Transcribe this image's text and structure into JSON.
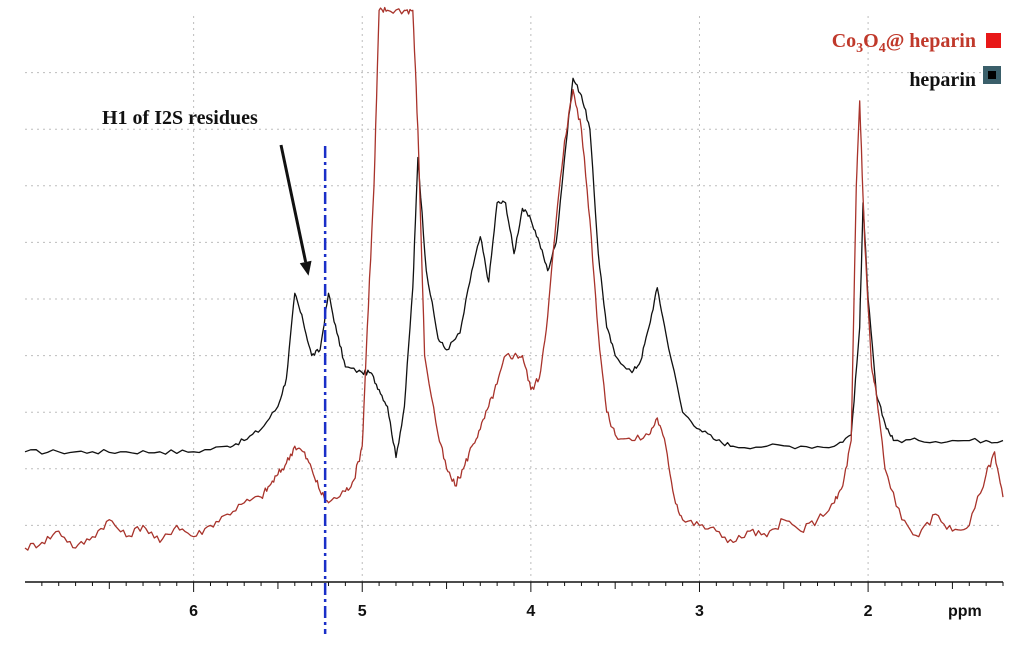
{
  "chart_data": {
    "type": "line",
    "title": "",
    "xlabel": "ppm",
    "ylabel": "",
    "x_reversed": true,
    "xlim": [
      7.0,
      1.2
    ],
    "ylim": [
      0,
      100
    ],
    "grid": true,
    "tick_labels": [
      "6",
      "5",
      "4",
      "3",
      "2"
    ],
    "ticks": [
      6,
      5,
      4,
      3,
      2
    ],
    "legend_placement": "top-right",
    "legend": [
      {
        "name": "Co3O4@ heparin",
        "color": "#c0392b",
        "marker_color": "#e81818"
      },
      {
        "name": "heparin",
        "color": "#111111",
        "marker_color": "#3a5f6a"
      }
    ],
    "annotation": {
      "text": "H1 of I2S residues",
      "points_to_ppm": 5.3
    },
    "reference_line_ppm": 5.22,
    "series": [
      {
        "name": "heparin",
        "color": "#111111",
        "points": [
          [
            7.0,
            23
          ],
          [
            6.8,
            23
          ],
          [
            6.6,
            23
          ],
          [
            6.4,
            23
          ],
          [
            6.2,
            23
          ],
          [
            6.0,
            23
          ],
          [
            5.8,
            24
          ],
          [
            5.7,
            25
          ],
          [
            5.6,
            27
          ],
          [
            5.5,
            31
          ],
          [
            5.45,
            36
          ],
          [
            5.4,
            51
          ],
          [
            5.35,
            46
          ],
          [
            5.3,
            40
          ],
          [
            5.25,
            41
          ],
          [
            5.2,
            51
          ],
          [
            5.15,
            44
          ],
          [
            5.1,
            38
          ],
          [
            5.0,
            37
          ],
          [
            4.95,
            37
          ],
          [
            4.9,
            34
          ],
          [
            4.85,
            31
          ],
          [
            4.8,
            22
          ],
          [
            4.75,
            31
          ],
          [
            4.7,
            52
          ],
          [
            4.67,
            75
          ],
          [
            4.62,
            55
          ],
          [
            4.55,
            43
          ],
          [
            4.5,
            41
          ],
          [
            4.42,
            44
          ],
          [
            4.35,
            55
          ],
          [
            4.3,
            61
          ],
          [
            4.25,
            53
          ],
          [
            4.2,
            67
          ],
          [
            4.15,
            67
          ],
          [
            4.1,
            58
          ],
          [
            4.05,
            66
          ],
          [
            4.0,
            64
          ],
          [
            3.95,
            60
          ],
          [
            3.9,
            55
          ],
          [
            3.85,
            60
          ],
          [
            3.8,
            75
          ],
          [
            3.75,
            89
          ],
          [
            3.7,
            86
          ],
          [
            3.65,
            80
          ],
          [
            3.6,
            58
          ],
          [
            3.55,
            45
          ],
          [
            3.5,
            40
          ],
          [
            3.4,
            37
          ],
          [
            3.35,
            39
          ],
          [
            3.3,
            45
          ],
          [
            3.25,
            52
          ],
          [
            3.2,
            44
          ],
          [
            3.1,
            30
          ],
          [
            3.0,
            27
          ],
          [
            2.9,
            25
          ],
          [
            2.8,
            24
          ],
          [
            2.6,
            24
          ],
          [
            2.4,
            24
          ],
          [
            2.2,
            24
          ],
          [
            2.1,
            26
          ],
          [
            2.05,
            45
          ],
          [
            2.03,
            67
          ],
          [
            2.0,
            50
          ],
          [
            1.95,
            33
          ],
          [
            1.9,
            28
          ],
          [
            1.85,
            25
          ],
          [
            1.7,
            25
          ],
          [
            1.5,
            25
          ],
          [
            1.3,
            25
          ],
          [
            1.2,
            25
          ]
        ]
      },
      {
        "name": "Co3O4@ heparin",
        "color": "#a8332b",
        "points": [
          [
            7.0,
            6
          ],
          [
            6.9,
            7
          ],
          [
            6.8,
            9
          ],
          [
            6.7,
            6
          ],
          [
            6.6,
            8
          ],
          [
            6.5,
            11
          ],
          [
            6.4,
            8
          ],
          [
            6.3,
            10
          ],
          [
            6.2,
            7
          ],
          [
            6.1,
            10
          ],
          [
            6.0,
            8
          ],
          [
            5.9,
            10
          ],
          [
            5.8,
            12
          ],
          [
            5.7,
            14
          ],
          [
            5.6,
            15
          ],
          [
            5.55,
            17
          ],
          [
            5.5,
            19
          ],
          [
            5.45,
            21
          ],
          [
            5.4,
            24
          ],
          [
            5.35,
            23
          ],
          [
            5.3,
            20
          ],
          [
            5.25,
            16
          ],
          [
            5.2,
            14
          ],
          [
            5.1,
            16
          ],
          [
            5.05,
            18
          ],
          [
            5.0,
            24
          ],
          [
            4.97,
            45
          ],
          [
            4.93,
            70
          ],
          [
            4.9,
            101
          ],
          [
            4.85,
            101
          ],
          [
            4.75,
            101
          ],
          [
            4.7,
            101
          ],
          [
            4.67,
            80
          ],
          [
            4.63,
            40
          ],
          [
            4.55,
            26
          ],
          [
            4.5,
            20
          ],
          [
            4.45,
            17
          ],
          [
            4.4,
            20
          ],
          [
            4.35,
            24
          ],
          [
            4.3,
            27
          ],
          [
            4.25,
            31
          ],
          [
            4.2,
            35
          ],
          [
            4.15,
            40
          ],
          [
            4.1,
            40
          ],
          [
            4.05,
            40
          ],
          [
            4.0,
            34
          ],
          [
            3.95,
            36
          ],
          [
            3.9,
            47
          ],
          [
            3.85,
            64
          ],
          [
            3.8,
            78
          ],
          [
            3.75,
            87
          ],
          [
            3.7,
            80
          ],
          [
            3.65,
            64
          ],
          [
            3.6,
            44
          ],
          [
            3.55,
            30
          ],
          [
            3.5,
            26
          ],
          [
            3.4,
            25
          ],
          [
            3.3,
            26
          ],
          [
            3.25,
            29
          ],
          [
            3.2,
            24
          ],
          [
            3.15,
            15
          ],
          [
            3.1,
            11
          ],
          [
            3.0,
            10
          ],
          [
            2.9,
            9
          ],
          [
            2.8,
            7
          ],
          [
            2.7,
            9
          ],
          [
            2.6,
            8
          ],
          [
            2.5,
            11
          ],
          [
            2.4,
            9
          ],
          [
            2.3,
            11
          ],
          [
            2.2,
            14
          ],
          [
            2.15,
            17
          ],
          [
            2.1,
            25
          ],
          [
            2.07,
            70
          ],
          [
            2.05,
            85
          ],
          [
            2.02,
            60
          ],
          [
            1.98,
            38
          ],
          [
            1.95,
            33
          ],
          [
            1.9,
            20
          ],
          [
            1.8,
            11
          ],
          [
            1.7,
            8
          ],
          [
            1.6,
            12
          ],
          [
            1.5,
            9
          ],
          [
            1.4,
            10
          ],
          [
            1.3,
            19
          ],
          [
            1.25,
            23
          ],
          [
            1.2,
            15
          ]
        ]
      }
    ]
  },
  "legend_label_co": "Co",
  "legend_sub_3": "3",
  "legend_label_o": "O",
  "legend_sub_4": "4",
  "legend_label_rest": "@ heparin"
}
